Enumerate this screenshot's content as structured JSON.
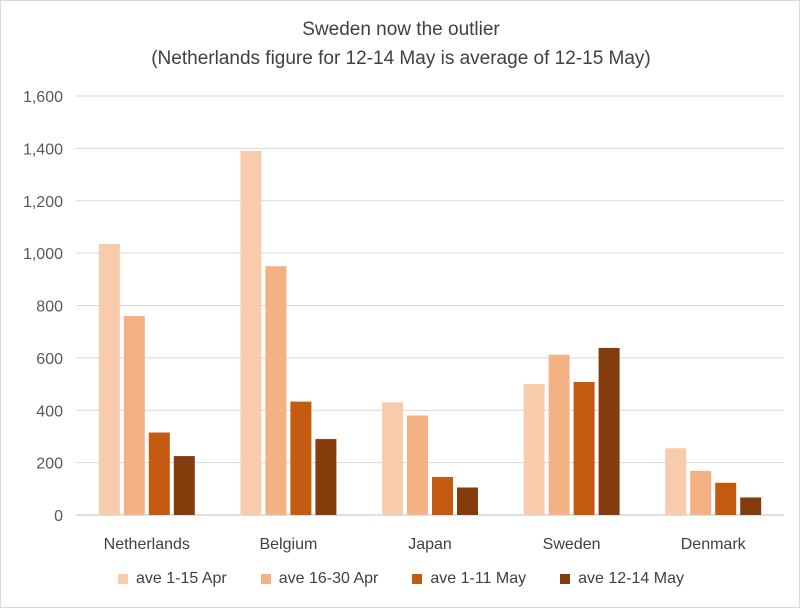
{
  "chart_data": {
    "type": "bar",
    "title": "Sweden now the outlier",
    "subtitle": "(Netherlands figure for 12-14 May is average of 12-15 May)",
    "categories": [
      "Netherlands",
      "Belgium",
      "Japan",
      "Sweden",
      "Denmark"
    ],
    "series": [
      {
        "name": "ave 1-15 Apr",
        "color": "#f8cbad",
        "values": [
          1035,
          1390,
          430,
          500,
          255
        ]
      },
      {
        "name": "ave 16-30 Apr",
        "color": "#f4b183",
        "values": [
          760,
          950,
          380,
          612,
          168
        ]
      },
      {
        "name": "ave 1-11 May",
        "color": "#c55a11",
        "values": [
          315,
          433,
          145,
          508,
          123
        ]
      },
      {
        "name": "ave 12-14 May",
        "color": "#843c0c",
        "values": [
          225,
          290,
          105,
          638,
          67
        ]
      }
    ],
    "ylim": [
      0,
      1600
    ],
    "yticks": [
      "0",
      "200",
      "400",
      "600",
      "800",
      "1,000",
      "1,200",
      "1,400",
      "1,600"
    ],
    "grid": true,
    "legend_position": "bottom"
  }
}
